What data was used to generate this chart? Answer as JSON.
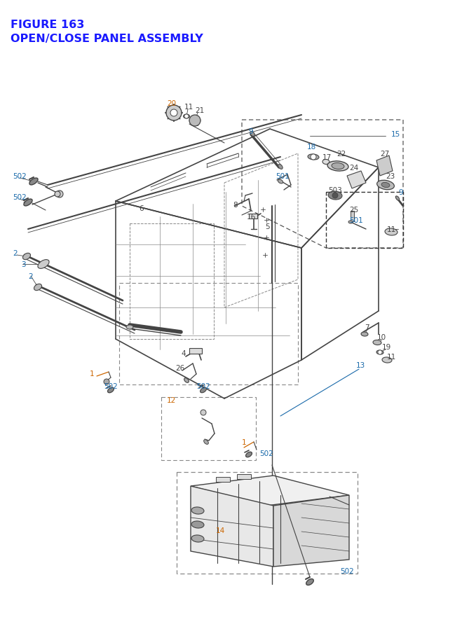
{
  "title_line1": "FIGURE 163",
  "title_line2": "OPEN/CLOSE PANEL ASSEMBLY",
  "title_color": "#1a1aff",
  "title_fontsize": 11.5,
  "bg": "#ffffff",
  "gray": "#444444",
  "lgray": "#888888",
  "blue": "#1a6aaa",
  "orange": "#cc6600"
}
